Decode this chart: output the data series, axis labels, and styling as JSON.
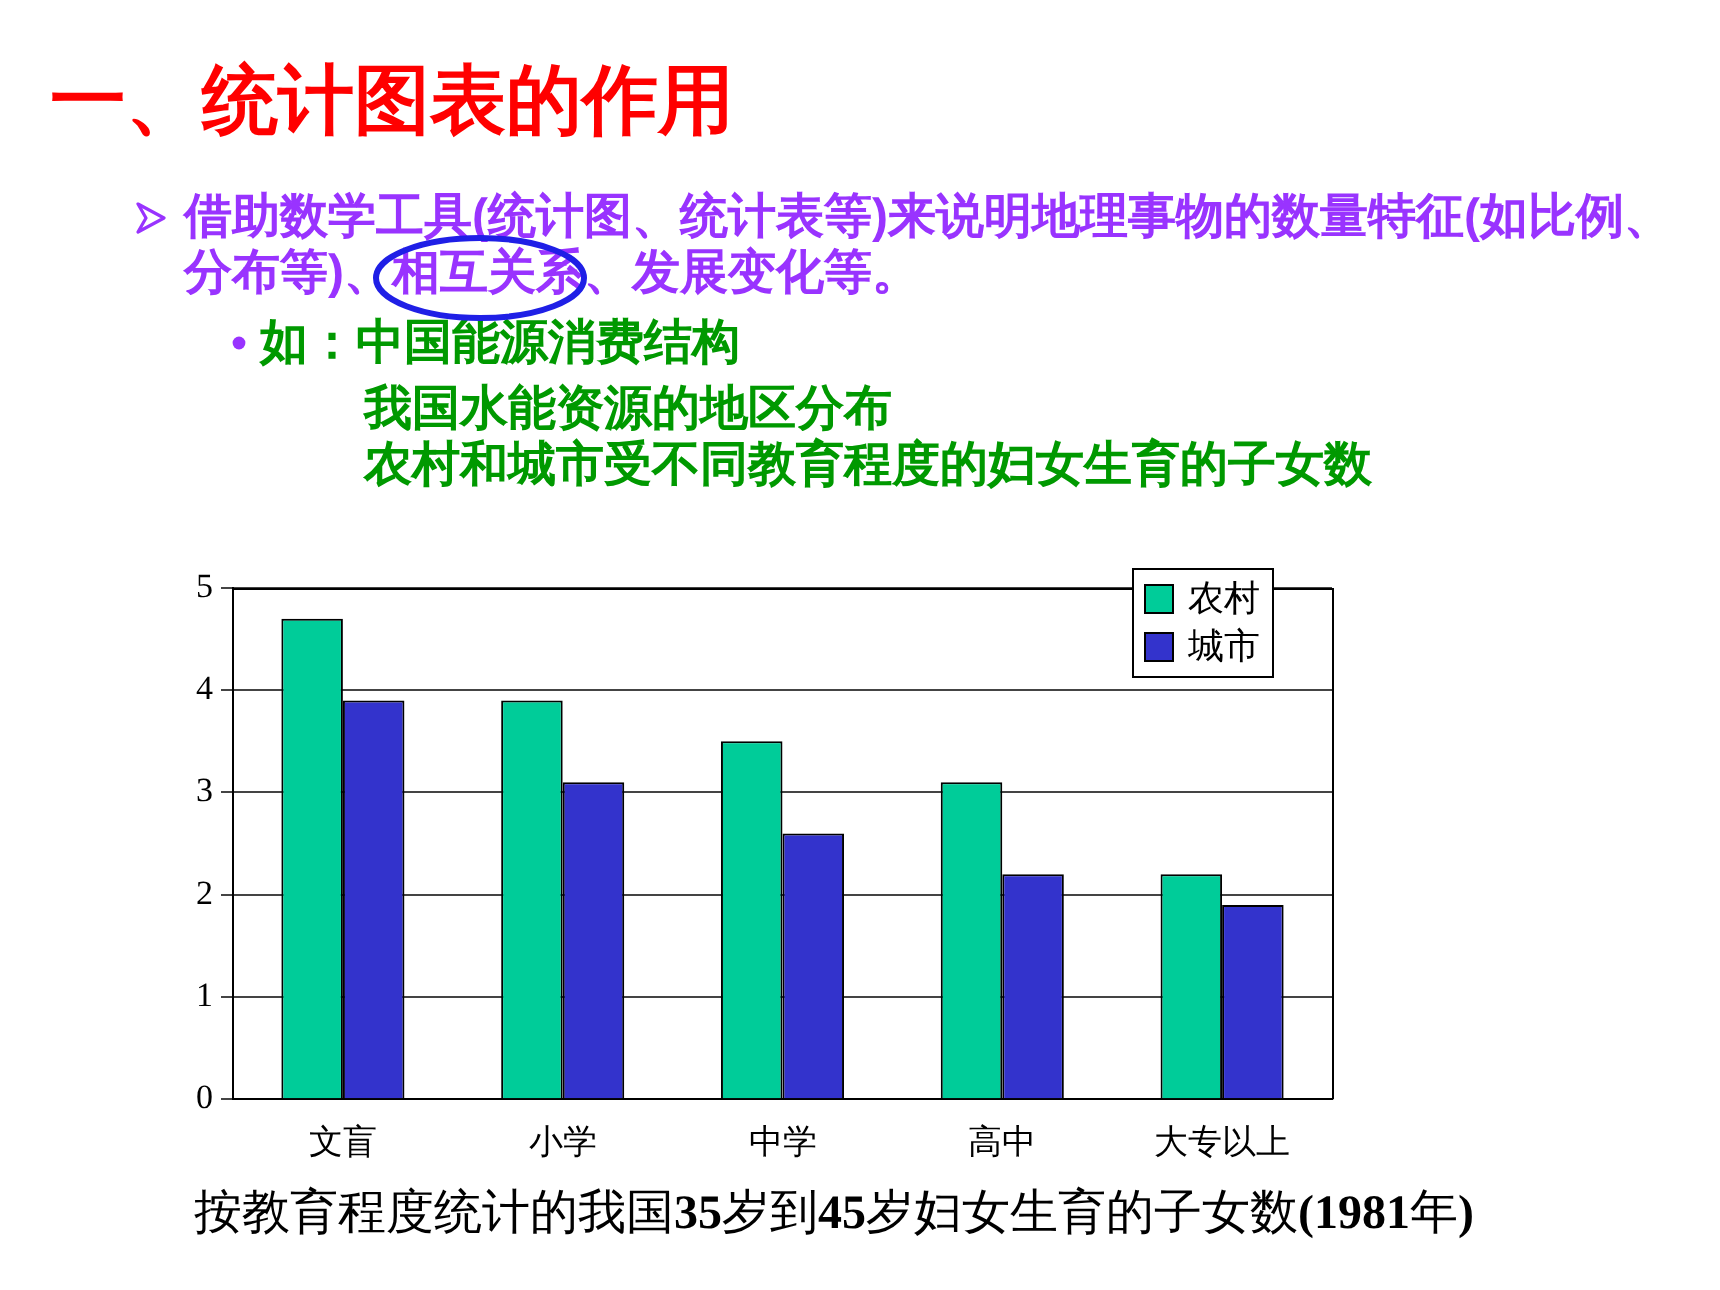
{
  "chart_data": {
    "type": "bar",
    "title": "一、统计图表的作用",
    "subtitle": "借助数学工具(统计图、统计表等)来说明地理事物的数量特征(如比例、分布等)、相互关系、发展变化等。",
    "annotations": [
      "如：中国能源消费结构",
      "我国水能资源的地区分布",
      "农村和城市受不同教育程度的妇女生育的子女数",
      "按教育程度统计的我国35岁到45岁妇女生育的子女数(1981年)"
    ],
    "categories": [
      "文盲",
      "小学",
      "中学",
      "高中",
      "大专以上"
    ],
    "series": [
      {
        "name": "农村",
        "color": "#00cc99",
        "values": [
          4.7,
          3.9,
          3.5,
          3.1,
          2.2
        ]
      },
      {
        "name": "城市",
        "color": "#3333cc",
        "values": [
          3.9,
          3.1,
          2.6,
          2.2,
          1.9
        ]
      }
    ],
    "ylim": [
      0,
      5
    ],
    "yticks": [
      0,
      1,
      2,
      3,
      4,
      5
    ],
    "grid": "y",
    "legend": "top right"
  }
}
